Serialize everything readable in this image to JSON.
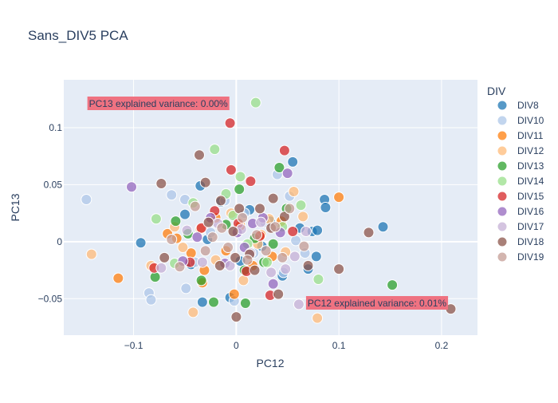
{
  "chart_data": {
    "type": "scatter",
    "title": "Sans_DIV5 PCA",
    "xlabel": "PC12",
    "ylabel": "PC13",
    "xlim": [
      -0.168,
      0.235
    ],
    "ylim": [
      -0.082,
      0.142
    ],
    "xticks": [
      -0.1,
      0,
      0.1,
      0.2
    ],
    "xtick_labels": [
      "−0.1",
      "0",
      "0.1",
      "0.2"
    ],
    "yticks": [
      -0.05,
      0,
      0.05,
      0.1
    ],
    "ytick_labels": [
      "−0.05",
      "0",
      "0.05",
      "0.1"
    ],
    "grid": true,
    "legend": {
      "title": "DIV",
      "position": "right"
    },
    "annotations": [
      {
        "text": "PC13 explained variance: 0.00%",
        "x": -0.145,
        "y": 0.121
      },
      {
        "text": "PC12 explained variance: 0.01%",
        "x": 0.068,
        "y": -0.054
      }
    ],
    "series": [
      {
        "name": "DIV8",
        "color": "#1f77b4",
        "points": [
          [
            -0.093,
            -0.001
          ],
          [
            -0.05,
            0.024
          ],
          [
            -0.044,
            -0.02
          ],
          [
            -0.035,
            0.049
          ],
          [
            -0.033,
            -0.053
          ],
          [
            -0.028,
            0.002
          ],
          [
            -0.015,
            0.035
          ],
          [
            -0.006,
            -0.049
          ],
          [
            0.004,
            -0.017
          ],
          [
            0.013,
            0.028
          ],
          [
            0.025,
            -0.004
          ],
          [
            0.033,
            0.018
          ],
          [
            0.045,
            -0.03
          ],
          [
            0.055,
            0.07
          ],
          [
            0.062,
            0.012
          ],
          [
            0.07,
            -0.024
          ],
          [
            0.074,
            0.009
          ],
          [
            0.078,
            -0.013
          ],
          [
            0.079,
            0.01
          ],
          [
            0.086,
            0.037
          ],
          [
            0.087,
            0.03
          ],
          [
            0.143,
            0.013
          ]
        ]
      },
      {
        "name": "DIV10",
        "color": "#aec7e8",
        "points": [
          [
            -0.146,
            0.037
          ],
          [
            -0.085,
            -0.045
          ],
          [
            -0.083,
            -0.051
          ],
          [
            -0.063,
            0.041
          ],
          [
            -0.05,
            0.037
          ],
          [
            -0.049,
            -0.041
          ],
          [
            -0.04,
            -0.018
          ],
          [
            -0.025,
            0.008
          ],
          [
            -0.011,
            0.036
          ],
          [
            -0.002,
            -0.052
          ],
          [
            0.008,
            0.025
          ],
          [
            0.017,
            -0.01
          ],
          [
            0.028,
            0.017
          ],
          [
            0.04,
            0.059
          ],
          [
            0.046,
            -0.027
          ],
          [
            0.052,
            0.04
          ],
          [
            0.058,
            0.001
          ],
          [
            0.067,
            -0.01
          ]
        ]
      },
      {
        "name": "DIV11",
        "color": "#ff7f0e",
        "points": [
          [
            -0.115,
            -0.032
          ],
          [
            -0.067,
            0.007
          ],
          [
            -0.058,
            0.003
          ],
          [
            -0.044,
            -0.01
          ],
          [
            -0.033,
            -0.036
          ],
          [
            -0.031,
            -0.025
          ],
          [
            -0.02,
            0.021
          ],
          [
            -0.01,
            -0.008
          ],
          [
            -0.002,
            -0.046
          ],
          [
            0.004,
            0.014
          ],
          [
            0.016,
            -0.021
          ],
          [
            0.024,
            0.006
          ],
          [
            0.035,
            -0.013
          ],
          [
            0.044,
            0.018
          ],
          [
            0.1,
            0.039
          ]
        ]
      },
      {
        "name": "DIV12",
        "color": "#ffbb78",
        "points": [
          [
            -0.141,
            -0.011
          ],
          [
            -0.083,
            -0.021
          ],
          [
            -0.06,
            0.013
          ],
          [
            -0.052,
            -0.005
          ],
          [
            -0.042,
            -0.062
          ],
          [
            -0.035,
            0.011
          ],
          [
            -0.02,
            -0.016
          ],
          [
            -0.005,
            0.025
          ],
          [
            0.007,
            -0.034
          ],
          [
            0.021,
            -0.002
          ],
          [
            0.032,
            0.02
          ],
          [
            0.048,
            -0.009
          ],
          [
            0.056,
            0.044
          ],
          [
            0.065,
            0.022
          ],
          [
            0.079,
            -0.067
          ]
        ]
      },
      {
        "name": "DIV13",
        "color": "#2ca02c",
        "points": [
          [
            -0.079,
            -0.031
          ],
          [
            -0.059,
            0.018
          ],
          [
            -0.047,
            0.007
          ],
          [
            -0.034,
            -0.034
          ],
          [
            -0.022,
            -0.053
          ],
          [
            -0.01,
            0.015
          ],
          [
            0.003,
            0.046
          ],
          [
            0.008,
            -0.025
          ],
          [
            0.009,
            -0.054
          ],
          [
            0.018,
            0.003
          ],
          [
            0.027,
            -0.018
          ],
          [
            0.036,
            -0.002
          ],
          [
            0.042,
            0.065
          ],
          [
            0.049,
            0.029
          ],
          [
            0.152,
            -0.038
          ]
        ]
      },
      {
        "name": "DIV14",
        "color": "#98df8a",
        "points": [
          [
            -0.078,
            0.02
          ],
          [
            -0.06,
            -0.019
          ],
          [
            -0.042,
            0.034
          ],
          [
            -0.021,
            0.081
          ],
          [
            -0.01,
            0.042
          ],
          [
            -0.003,
            0.023
          ],
          [
            0.004,
            0.057
          ],
          [
            0.011,
            -0.002
          ],
          [
            0.019,
            0.122
          ],
          [
            0.03,
            -0.018
          ],
          [
            0.045,
            0.013
          ],
          [
            0.063,
            0.032
          ],
          [
            0.08,
            -0.033
          ]
        ]
      },
      {
        "name": "DIV15",
        "color": "#d62728",
        "points": [
          [
            -0.08,
            -0.023
          ],
          [
            -0.045,
            -0.018
          ],
          [
            -0.034,
            0.012
          ],
          [
            -0.021,
            0.027
          ],
          [
            -0.006,
            0.104
          ],
          [
            -0.005,
            0.063
          ],
          [
            0.002,
            0.016
          ],
          [
            0.01,
            -0.026
          ],
          [
            0.014,
            0.053
          ],
          [
            0.023,
            0.005
          ],
          [
            0.033,
            -0.047
          ],
          [
            0.047,
            0.08
          ],
          [
            0.055,
            0.009
          ]
        ]
      },
      {
        "name": "DIV16",
        "color": "#9467bd",
        "points": [
          [
            -0.102,
            0.048
          ],
          [
            -0.052,
            -0.017
          ],
          [
            -0.038,
            0.004
          ],
          [
            -0.025,
            0.021
          ],
          [
            -0.011,
            -0.019
          ],
          [
            0.001,
            0.008
          ],
          [
            0.008,
            -0.005
          ],
          [
            0.016,
            0.016
          ],
          [
            0.026,
            0.021
          ],
          [
            0.036,
            -0.037
          ],
          [
            0.043,
            0.008
          ],
          [
            0.05,
            0.06
          ]
        ]
      },
      {
        "name": "DIV17",
        "color": "#c5b0d5",
        "points": [
          [
            -0.073,
            -0.023
          ],
          [
            -0.048,
            0.01
          ],
          [
            -0.033,
            -0.018
          ],
          [
            -0.018,
            0.016
          ],
          [
            -0.006,
            -0.021
          ],
          [
            0.005,
            0.011
          ],
          [
            0.014,
            -0.01
          ],
          [
            0.024,
            0.017
          ],
          [
            0.034,
            -0.027
          ],
          [
            0.048,
            -0.024
          ],
          [
            0.057,
            -0.013
          ],
          [
            0.061,
            -0.055
          ],
          [
            0.068,
            0.009
          ]
        ]
      },
      {
        "name": "DIV18",
        "color": "#8c564b",
        "points": [
          [
            -0.073,
            0.051
          ],
          [
            -0.07,
            -0.014
          ],
          [
            -0.036,
            0.076
          ],
          [
            -0.03,
            0.052
          ],
          [
            -0.027,
            0.017
          ],
          [
            -0.016,
            -0.021
          ],
          [
            -0.015,
            0.036
          ],
          [
            -0.003,
            0.009
          ],
          [
            -0.001,
            -0.014
          ],
          [
            0,
            -0.066
          ],
          [
            0.003,
            0.029
          ],
          [
            0.013,
            -0.011
          ],
          [
            0.018,
            -0.025
          ],
          [
            0.023,
            0.029
          ],
          [
            0.034,
            0.012
          ],
          [
            0.036,
            0.038
          ],
          [
            0.041,
            -0.046
          ],
          [
            0.047,
            0.022
          ],
          [
            0.07,
            -0.021
          ],
          [
            0.1,
            -0.024
          ],
          [
            0.129,
            0.008
          ],
          [
            0.209,
            -0.059
          ]
        ]
      },
      {
        "name": "DIV19",
        "color": "#c49c94",
        "points": [
          [
            -0.063,
            0.002
          ],
          [
            -0.055,
            -0.022
          ],
          [
            -0.04,
            0.031
          ],
          [
            -0.03,
            -0.008
          ],
          [
            -0.023,
            0.004
          ],
          [
            -0.014,
            0.012
          ],
          [
            -0.008,
            -0.005
          ],
          [
            0.006,
            0.021
          ],
          [
            0.011,
            -0.016
          ],
          [
            0.02,
            0.006
          ],
          [
            0.029,
            -0.008
          ],
          [
            0.038,
            0.013
          ],
          [
            0.045,
            -0.014
          ],
          [
            0.052,
            0.029
          ],
          [
            0.066,
            -0.004
          ]
        ]
      }
    ]
  }
}
